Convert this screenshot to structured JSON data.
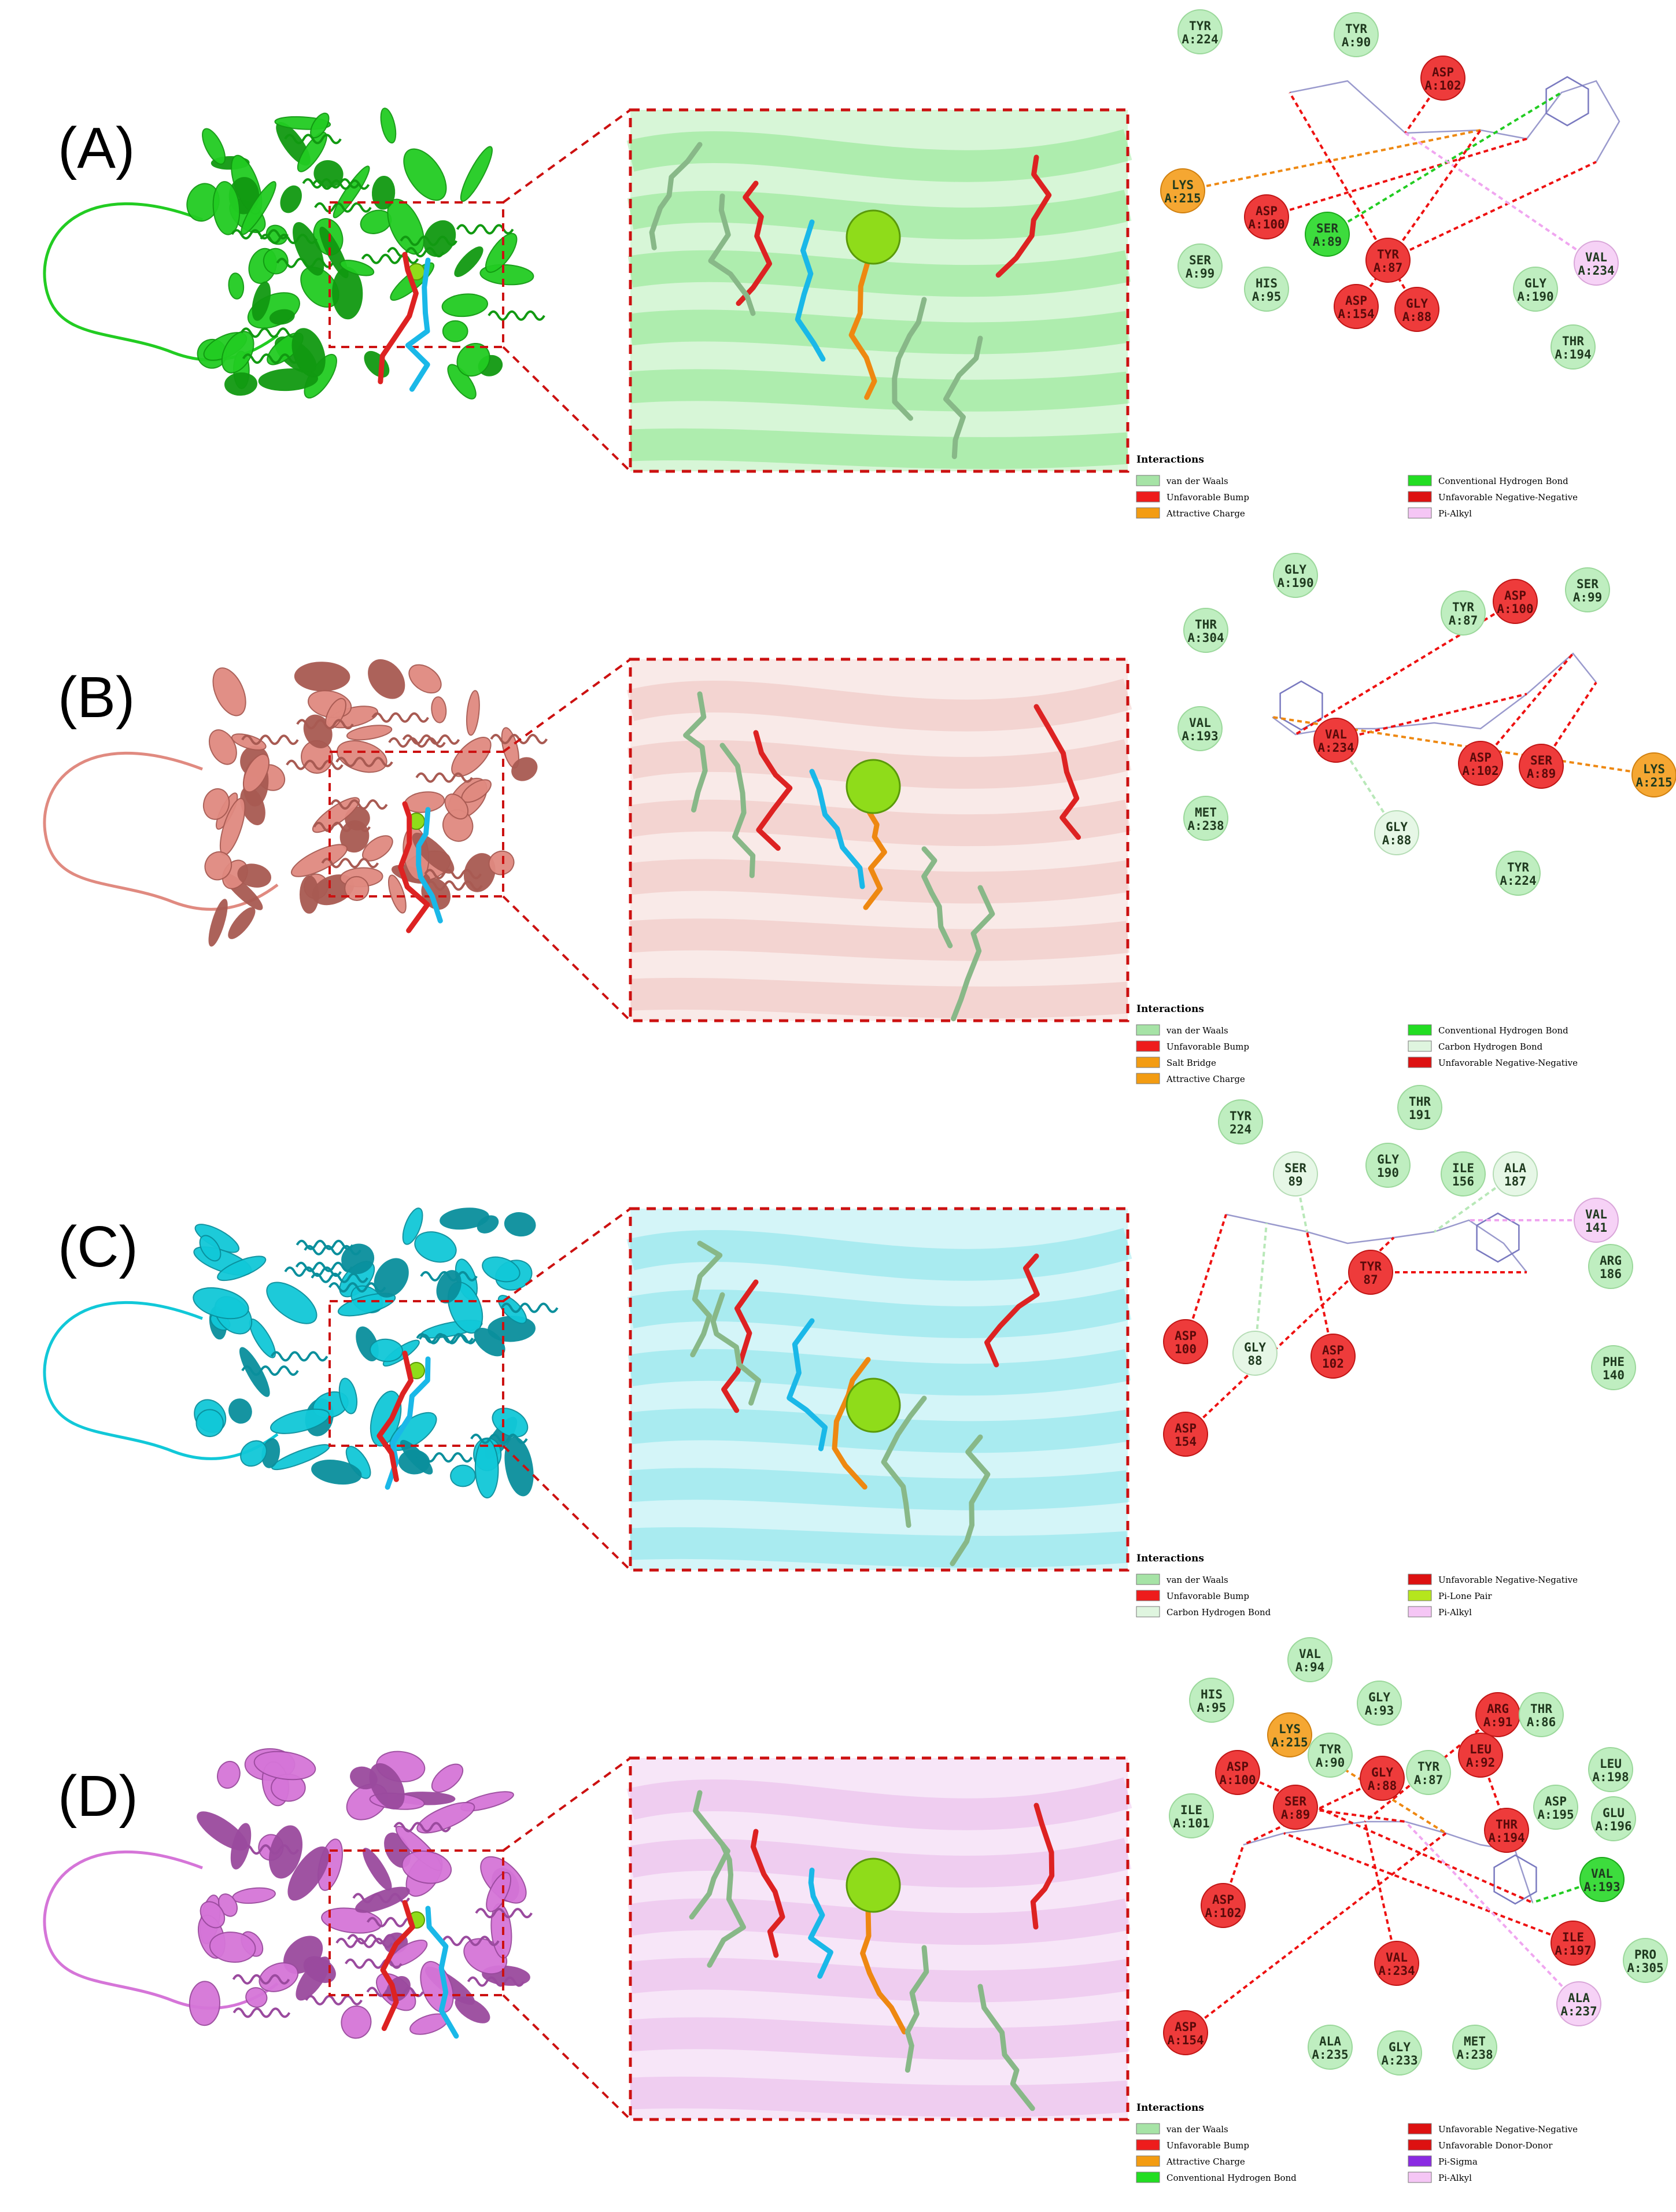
{
  "panels": [
    {
      "label": "(A)",
      "protein_color": "#22cc22",
      "protein_dark": "#119911",
      "residues": [
        {
          "name": "TYR",
          "id": "A:224",
          "kind": "vdw"
        },
        {
          "name": "TYR",
          "id": "A:90",
          "kind": "vdw"
        },
        {
          "name": "ASP",
          "id": "A:102",
          "kind": "neg"
        },
        {
          "name": "LYS",
          "id": "A:215",
          "kind": "attr"
        },
        {
          "name": "ASP",
          "id": "A:100",
          "kind": "neg"
        },
        {
          "name": "SER",
          "id": "A:89",
          "kind": "hbond"
        },
        {
          "name": "SER",
          "id": "A:99",
          "kind": "vdw"
        },
        {
          "name": "HIS",
          "id": "A:95",
          "kind": "vdw"
        },
        {
          "name": "TYR",
          "id": "A:87",
          "kind": "neg"
        },
        {
          "name": "GLY",
          "id": "A:88",
          "kind": "neg"
        },
        {
          "name": "GLY",
          "id": "A:190",
          "kind": "vdw"
        },
        {
          "name": "VAL",
          "id": "A:234",
          "kind": "pialkyl"
        },
        {
          "name": "ASP",
          "id": "A:154",
          "kind": "neg"
        },
        {
          "name": "THR",
          "id": "A:194",
          "kind": "vdw"
        }
      ],
      "legend_title": "Interactions",
      "legend": [
        {
          "label": "van der Waals",
          "color": "#a6e3a6"
        },
        {
          "label": "Conventional Hydrogen Bond",
          "color": "#22dd22"
        },
        {
          "label": "Unfavorable Bump",
          "color": "#ee1c1c"
        },
        {
          "label": "Unfavorable Negative-Negative",
          "color": "#dd1111"
        },
        {
          "label": "Attractive Charge",
          "color": "#f39c12"
        },
        {
          "label": "Pi-Alkyl",
          "color": "#f5c6f5"
        }
      ]
    },
    {
      "label": "(B)",
      "protein_color": "#e08a80",
      "protein_dark": "#a85a52",
      "residues": [
        {
          "name": "GLY",
          "id": "A:190",
          "kind": "vdw"
        },
        {
          "name": "ASP",
          "id": "A:100",
          "kind": "neg"
        },
        {
          "name": "SER",
          "id": "A:99",
          "kind": "vdw"
        },
        {
          "name": "THR",
          "id": "A:304",
          "kind": "vdw"
        },
        {
          "name": "TYR",
          "id": "A:87",
          "kind": "vdw"
        },
        {
          "name": "VAL",
          "id": "A:193",
          "kind": "vdw"
        },
        {
          "name": "VAL",
          "id": "A:234",
          "kind": "neg"
        },
        {
          "name": "ASP",
          "id": "A:102",
          "kind": "neg"
        },
        {
          "name": "SER",
          "id": "A:89",
          "kind": "neg"
        },
        {
          "name": "LYS",
          "id": "A:215",
          "kind": "attr"
        },
        {
          "name": "MET",
          "id": "A:238",
          "kind": "vdw"
        },
        {
          "name": "GLY",
          "id": "A:88",
          "kind": "chb"
        },
        {
          "name": "TYR",
          "id": "A:224",
          "kind": "vdw"
        }
      ],
      "legend_title": "Interactions",
      "legend": [
        {
          "label": "van der Waals",
          "color": "#a6e3a6"
        },
        {
          "label": "Conventional Hydrogen Bond",
          "color": "#22dd22"
        },
        {
          "label": "Unfavorable Bump",
          "color": "#ee1c1c"
        },
        {
          "label": "Carbon Hydrogen Bond",
          "color": "#dff5df"
        },
        {
          "label": "Salt Bridge",
          "color": "#f39c12"
        },
        {
          "label": "Unfavorable Negative-Negative",
          "color": "#dd1111"
        },
        {
          "label": "Attractive Charge",
          "color": "#f39c12"
        }
      ]
    },
    {
      "label": "(C)",
      "protein_color": "#11c8d8",
      "protein_dark": "#0a8f9c",
      "residues": [
        {
          "name": "TYR",
          "id": "224",
          "kind": "vdw"
        },
        {
          "name": "THR",
          "id": "191",
          "kind": "vdw"
        },
        {
          "name": "SER",
          "id": "89",
          "kind": "chb"
        },
        {
          "name": "GLY",
          "id": "190",
          "kind": "vdw"
        },
        {
          "name": "ILE",
          "id": "156",
          "kind": "vdw"
        },
        {
          "name": "ALA",
          "id": "187",
          "kind": "chb"
        },
        {
          "name": "VAL",
          "id": "141",
          "kind": "pialkyl"
        },
        {
          "name": "ARG",
          "id": "186",
          "kind": "vdw"
        },
        {
          "name": "TYR",
          "id": "87",
          "kind": "neg"
        },
        {
          "name": "ASP",
          "id": "100",
          "kind": "neg"
        },
        {
          "name": "GLY",
          "id": "88",
          "kind": "chb"
        },
        {
          "name": "ASP",
          "id": "102",
          "kind": "neg"
        },
        {
          "name": "PHE",
          "id": "140",
          "kind": "vdw"
        },
        {
          "name": "ASP",
          "id": "154",
          "kind": "neg"
        }
      ],
      "legend_title": "Interactions",
      "legend": [
        {
          "label": "van der Waals",
          "color": "#a6e3a6"
        },
        {
          "label": "Unfavorable Negative-Negative",
          "color": "#dd1111"
        },
        {
          "label": "Unfavorable Bump",
          "color": "#ee1c1c"
        },
        {
          "label": "Pi-Lone Pair",
          "color": "#b5e61d"
        },
        {
          "label": "Carbon Hydrogen Bond",
          "color": "#dff5df"
        },
        {
          "label": "Pi-Alkyl",
          "color": "#f5c6f5"
        }
      ]
    },
    {
      "label": "(D)",
      "protein_color": "#d575d8",
      "protein_dark": "#9a4a9e",
      "residues": [
        {
          "name": "VAL",
          "id": "A:94",
          "kind": "vdw"
        },
        {
          "name": "HIS",
          "id": "A:95",
          "kind": "vdw"
        },
        {
          "name": "GLY",
          "id": "A:93",
          "kind": "vdw"
        },
        {
          "name": "ARG",
          "id": "A:91",
          "kind": "neg"
        },
        {
          "name": "THR",
          "id": "A:86",
          "kind": "vdw"
        },
        {
          "name": "LYS",
          "id": "A:215",
          "kind": "attr"
        },
        {
          "name": "TYR",
          "id": "A:90",
          "kind": "vdw"
        },
        {
          "name": "LEU",
          "id": "A:92",
          "kind": "neg"
        },
        {
          "name": "ASP",
          "id": "A:100",
          "kind": "neg"
        },
        {
          "name": "GLY",
          "id": "A:88",
          "kind": "neg"
        },
        {
          "name": "TYR",
          "id": "A:87",
          "kind": "vdw"
        },
        {
          "name": "LEU",
          "id": "A:198",
          "kind": "vdw"
        },
        {
          "name": "ILE",
          "id": "A:101",
          "kind": "vdw"
        },
        {
          "name": "SER",
          "id": "A:89",
          "kind": "neg"
        },
        {
          "name": "ASP",
          "id": "A:195",
          "kind": "vdw"
        },
        {
          "name": "GLU",
          "id": "A:196",
          "kind": "vdw"
        },
        {
          "name": "THR",
          "id": "A:194",
          "kind": "neg"
        },
        {
          "name": "VAL",
          "id": "A:193",
          "kind": "hbond"
        },
        {
          "name": "ASP",
          "id": "A:102",
          "kind": "neg"
        },
        {
          "name": "ILE",
          "id": "A:197",
          "kind": "neg"
        },
        {
          "name": "PRO",
          "id": "A:305",
          "kind": "vdw"
        },
        {
          "name": "VAL",
          "id": "A:234",
          "kind": "neg"
        },
        {
          "name": "ALA",
          "id": "A:237",
          "kind": "pialkyl"
        },
        {
          "name": "ASP",
          "id": "A:154",
          "kind": "neg"
        },
        {
          "name": "ALA",
          "id": "A:235",
          "kind": "vdw"
        },
        {
          "name": "GLY",
          "id": "A:233",
          "kind": "vdw"
        },
        {
          "name": "MET",
          "id": "A:238",
          "kind": "vdw"
        }
      ],
      "legend_title": "Interactions",
      "legend": [
        {
          "label": "van der Waals",
          "color": "#a6e3a6"
        },
        {
          "label": "Unfavorable Negative-Negative",
          "color": "#dd1111"
        },
        {
          "label": "Unfavorable Bump",
          "color": "#ee1c1c"
        },
        {
          "label": "Unfavorable Donor-Donor",
          "color": "#dd1111"
        },
        {
          "label": "Attractive Charge",
          "color": "#f39c12"
        },
        {
          "label": "Pi-Sigma",
          "color": "#8a2be2"
        },
        {
          "label": "Conventional Hydrogen Bond",
          "color": "#22dd22"
        },
        {
          "label": "Pi-Alkyl",
          "color": "#f5c6f5"
        }
      ]
    }
  ]
}
